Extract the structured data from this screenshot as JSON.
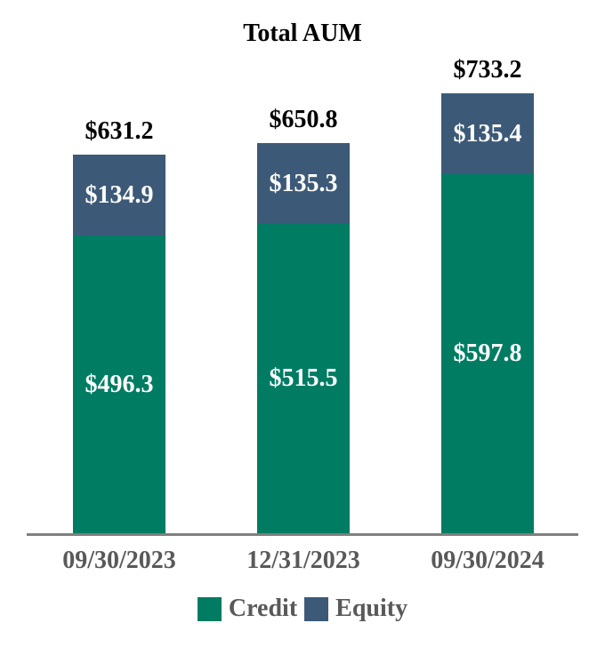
{
  "title": "Total AUM",
  "colors": {
    "credit": "#007C63",
    "equity": "#3C5A77",
    "axis_line": "#7F7F7F",
    "axis_text": "#595959",
    "legend_text": "#595959",
    "total_text": "#000000",
    "segment_text": "#FFFFFF",
    "background": "#FFFFFF"
  },
  "chart_data": {
    "type": "bar",
    "stacked": true,
    "title": "Total AUM",
    "categories": [
      "09/30/2023",
      "12/31/2023",
      "09/30/2024"
    ],
    "series": [
      {
        "name": "Credit",
        "color": "#007C63",
        "values": [
          496.3,
          515.5,
          597.8
        ],
        "labels": [
          "$496.3",
          "$515.5",
          "$597.8"
        ]
      },
      {
        "name": "Equity",
        "color": "#3C5A77",
        "values": [
          134.9,
          135.3,
          135.4
        ],
        "labels": [
          "$134.9",
          "$135.3",
          "$135.4"
        ]
      }
    ],
    "totals": [
      631.2,
      650.8,
      733.2
    ],
    "total_labels": [
      "$631.2",
      "$650.8",
      "$733.2"
    ],
    "xlabel": "",
    "ylabel": "",
    "ylim": [
      0,
      740
    ],
    "grid": false,
    "y_axis_visible": false,
    "legend_position": "bottom",
    "legend_entries": [
      "Credit",
      "Equity"
    ]
  }
}
